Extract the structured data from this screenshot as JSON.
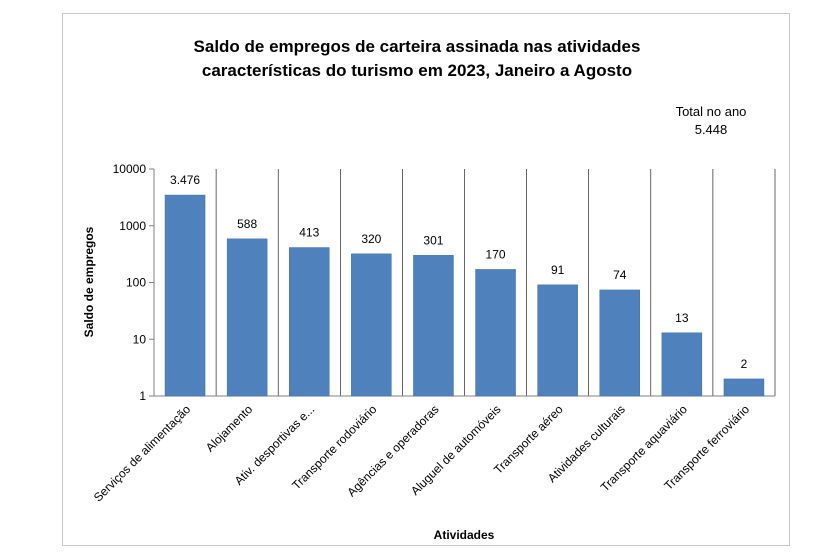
{
  "chart_data": {
    "type": "bar",
    "title_lines": [
      "Saldo de empregos de carteira assinada nas atividades",
      "características do turismo em 2023, Janeiro a Agosto"
    ],
    "annotation": {
      "label": "Total no ano",
      "value": "5.448"
    },
    "xlabel": "Atividades",
    "ylabel": "Saldo de empregos",
    "yscale": "log",
    "ylim": [
      1,
      10000
    ],
    "yticks": [
      1,
      10,
      100,
      1000,
      10000
    ],
    "ytick_labels": [
      "1",
      "10",
      "100",
      "1000",
      "10000"
    ],
    "grid": "vertical lines between categories",
    "categories": [
      "Serviços de alimentação",
      "Alojamento",
      "Ativ. desportivas e...",
      "Transporte rodoviário",
      "Agências e operadoras",
      "Aluguel de automóveis",
      "Transporte aéreo",
      "Atividades culturais",
      "Transporte aquaviário",
      "Transporte ferroviário"
    ],
    "values": [
      3476,
      588,
      413,
      320,
      301,
      170,
      91,
      74,
      13,
      2
    ],
    "value_labels": [
      "3.476",
      "588",
      "413",
      "320",
      "301",
      "170",
      "91",
      "74",
      "13",
      "2"
    ],
    "colors": {
      "bar": "#4f81bd"
    }
  }
}
